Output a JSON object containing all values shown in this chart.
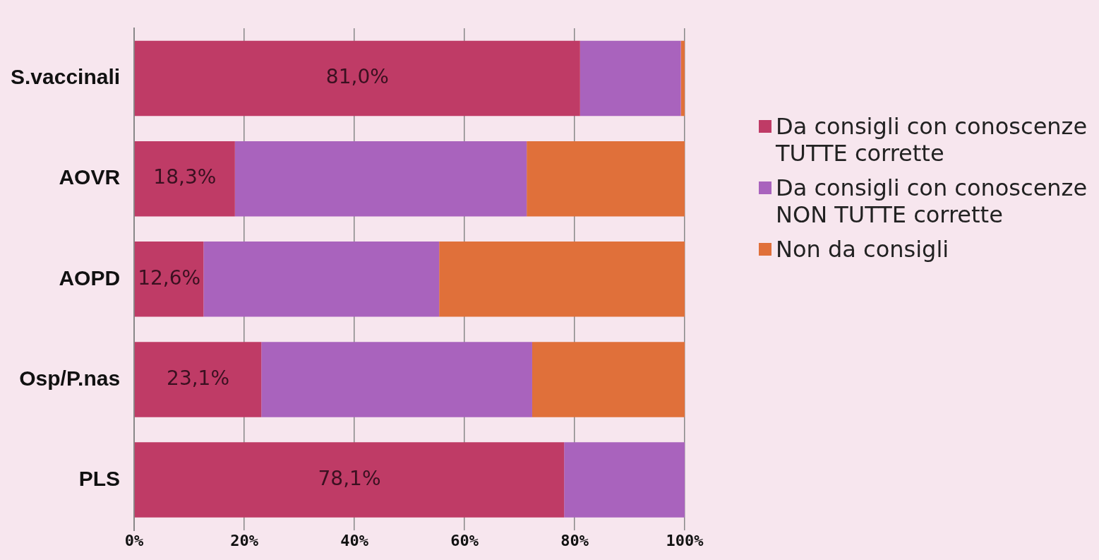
{
  "chart_data": {
    "type": "bar",
    "orientation": "horizontal",
    "stacked": true,
    "categories": [
      "S.vaccinali",
      "AOVR",
      "AOPD",
      "Osp/P.nas",
      "PLS"
    ],
    "series": [
      {
        "name": "Da consigli con conoscenze TUTTE corrette",
        "color": "#bf3b66",
        "values": [
          81.0,
          18.3,
          12.6,
          23.1,
          78.1
        ],
        "value_labels": [
          "81,0%",
          "18,3%",
          "12,6%",
          "23,1%",
          "78,1%"
        ]
      },
      {
        "name": "Da consigli con conoscenze NON TUTTE corrette",
        "color": "#a963bd",
        "values": [
          18.3,
          53.0,
          42.8,
          49.2,
          21.9
        ]
      },
      {
        "name": "Non da consigli",
        "color": "#e0703a",
        "values": [
          0.7,
          28.7,
          44.6,
          27.7,
          0
        ]
      }
    ],
    "xlim": [
      0,
      100
    ],
    "xticks": [
      {
        "value": 0,
        "label": "0%"
      },
      {
        "value": 20,
        "label": "20%"
      },
      {
        "value": 40,
        "label": "40%"
      },
      {
        "value": 60,
        "label": "60%"
      },
      {
        "value": 80,
        "label": "80%"
      },
      {
        "value": 100,
        "label": "100%"
      }
    ],
    "grid": "x",
    "legend": "right"
  }
}
